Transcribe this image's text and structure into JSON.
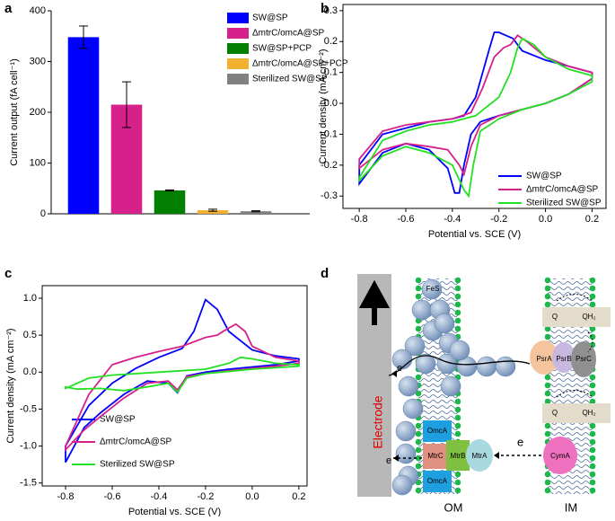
{
  "chart_data": [
    {
      "type": "bar",
      "panel": "a",
      "ylabel": "Current output (fA cell⁻¹)",
      "categories": [
        "SW@SP",
        "ΔmtrC/omcA@SP",
        "SW@SP+PCP",
        "ΔmtrC/omcA@SP+PCP",
        "Sterilized SW@SP"
      ],
      "values": [
        348,
        215,
        46,
        7,
        5
      ],
      "errors": [
        22,
        45,
        1,
        2,
        1
      ],
      "colors": [
        "#0000ff",
        "#d6218b",
        "#007f00",
        "#f0b030",
        "#808080"
      ],
      "ylim": [
        0,
        400
      ],
      "yticks": [
        0,
        100,
        200,
        300,
        400
      ],
      "legend": "upper right"
    },
    {
      "type": "line",
      "panel": "b",
      "xlabel": "Potential vs. SCE (V)",
      "ylabel": "Current density (mA cm⁻²)",
      "xlim": [
        -0.87,
        0.26
      ],
      "ylim": [
        -0.34,
        0.32
      ],
      "xticks": [
        -0.8,
        -0.6,
        -0.4,
        -0.2,
        {
          "value": 0,
          "label": "0.0"
        },
        0.2
      ],
      "yticks": [
        -0.3,
        -0.2,
        -0.1,
        {
          "value": 0,
          "label": "0.0"
        },
        0.1,
        0.2,
        0.3
      ],
      "legend": "lower right",
      "series": [
        {
          "name": "SW@SP",
          "color": "#0000ff",
          "x": [
            -0.8,
            -0.7,
            -0.6,
            -0.5,
            -0.4,
            -0.35,
            -0.3,
            -0.27,
            -0.24,
            -0.22,
            -0.2,
            -0.17,
            -0.14,
            -0.1,
            0,
            0.1,
            0.2,
            0.2,
            0.1,
            0,
            -0.1,
            -0.2,
            -0.28,
            -0.32,
            -0.35,
            -0.37,
            -0.39,
            -0.42,
            -0.5,
            -0.6,
            -0.7,
            -0.8
          ],
          "values": [
            -0.2,
            -0.1,
            -0.08,
            -0.06,
            -0.05,
            -0.04,
            0.02,
            0.1,
            0.18,
            0.23,
            0.23,
            0.22,
            0.21,
            0.17,
            0.14,
            0.12,
            0.1,
            0.08,
            0.03,
            0,
            -0.02,
            -0.04,
            -0.06,
            -0.1,
            -0.2,
            -0.29,
            -0.29,
            -0.21,
            -0.15,
            -0.13,
            -0.16,
            -0.26
          ]
        },
        {
          "name": "ΔmtrC/omcA@SP",
          "color": "#d6218b",
          "x": [
            -0.8,
            -0.7,
            -0.6,
            -0.5,
            -0.4,
            -0.32,
            -0.27,
            -0.22,
            -0.18,
            -0.15,
            -0.12,
            -0.08,
            0,
            0.1,
            0.2,
            0.2,
            0.1,
            0,
            -0.1,
            -0.2,
            -0.28,
            -0.32,
            -0.35,
            -0.37,
            -0.42,
            -0.5,
            -0.6,
            -0.7,
            -0.8
          ],
          "values": [
            -0.18,
            -0.09,
            -0.07,
            -0.06,
            -0.05,
            -0.03,
            0.05,
            0.15,
            0.18,
            0.19,
            0.22,
            0.2,
            0.15,
            0.12,
            0.1,
            0.08,
            0.03,
            0,
            -0.02,
            -0.04,
            -0.07,
            -0.14,
            -0.23,
            -0.2,
            -0.15,
            -0.14,
            -0.13,
            -0.15,
            -0.21
          ]
        },
        {
          "name": "Sterilized SW@SP",
          "color": "#22e022",
          "x": [
            -0.8,
            -0.7,
            -0.6,
            -0.5,
            -0.4,
            -0.3,
            -0.2,
            -0.15,
            -0.12,
            -0.1,
            -0.05,
            0,
            0.1,
            0.2,
            0.2,
            0.1,
            0,
            -0.1,
            -0.2,
            -0.28,
            -0.31,
            -0.33,
            -0.35,
            -0.4,
            -0.5,
            -0.6,
            -0.7,
            -0.8
          ],
          "values": [
            -0.24,
            -0.12,
            -0.09,
            -0.07,
            -0.06,
            -0.04,
            0.02,
            0.1,
            0.18,
            0.21,
            0.19,
            0.15,
            0.11,
            0.09,
            0.07,
            0.03,
            0,
            -0.02,
            -0.05,
            -0.09,
            -0.2,
            -0.3,
            -0.28,
            -0.2,
            -0.16,
            -0.14,
            -0.17,
            -0.25
          ]
        }
      ]
    },
    {
      "type": "line",
      "panel": "c",
      "xlabel": "Potential vs. SCE (V)",
      "ylabel": "Current density (mA cm⁻²)",
      "xlim": [
        -0.9,
        0.235
      ],
      "ylim": [
        -1.54,
        1.17
      ],
      "xticks": [
        -0.8,
        -0.6,
        -0.4,
        -0.2,
        {
          "value": 0,
          "label": "0.0"
        },
        0.2
      ],
      "yticks": [
        -1.5,
        {
          "value": -1,
          "label": "-1.0"
        },
        -0.5,
        {
          "value": 0,
          "label": "0.0"
        },
        0.5,
        {
          "value": 1,
          "label": "1.0"
        }
      ],
      "legend": "lower left",
      "series": [
        {
          "name": "SW@SP",
          "color": "#0000ff",
          "x": [
            -0.8,
            -0.7,
            -0.6,
            -0.5,
            -0.4,
            -0.3,
            -0.25,
            -0.2,
            -0.15,
            -0.1,
            0,
            0.1,
            0.2,
            0.2,
            0.1,
            0,
            -0.1,
            -0.2,
            -0.28,
            -0.32,
            -0.36,
            -0.45,
            -0.55,
            -0.65,
            -0.72,
            -0.8
          ],
          "values": [
            -1.0,
            -0.45,
            -0.15,
            0.05,
            0.2,
            0.32,
            0.55,
            0.98,
            0.85,
            0.55,
            0.3,
            0.22,
            0.18,
            0.15,
            0.1,
            0.07,
            0.04,
            0.0,
            -0.05,
            -0.28,
            -0.15,
            -0.12,
            -0.3,
            -0.55,
            -0.75,
            -1.22
          ]
        },
        {
          "name": "ΔmtrC/omcA@SP",
          "color": "#d6218b",
          "x": [
            -0.8,
            -0.7,
            -0.6,
            -0.5,
            -0.4,
            -0.3,
            -0.2,
            -0.15,
            -0.12,
            -0.07,
            -0.03,
            0,
            0.1,
            0.2,
            0.2,
            0.1,
            0,
            -0.1,
            -0.2,
            -0.28,
            -0.32,
            -0.36,
            -0.45,
            -0.55,
            -0.65,
            -0.72,
            -0.8
          ],
          "values": [
            -1.0,
            -0.3,
            0.1,
            0.2,
            0.28,
            0.35,
            0.47,
            0.5,
            0.56,
            0.65,
            0.55,
            0.35,
            0.2,
            0.15,
            0.12,
            0.08,
            0.05,
            0.02,
            -0.02,
            -0.06,
            -0.24,
            -0.12,
            -0.15,
            -0.35,
            -0.6,
            -0.78,
            -1.05
          ]
        },
        {
          "name": "Sterilized SW@SP",
          "color": "#22e022",
          "x": [
            -0.8,
            -0.7,
            -0.6,
            -0.4,
            -0.2,
            -0.1,
            -0.05,
            0,
            0.1,
            0.2,
            0.2,
            0,
            -0.2,
            -0.28,
            -0.32,
            -0.36,
            -0.45,
            -0.55,
            -0.65,
            -0.75,
            -0.8
          ],
          "values": [
            -0.22,
            -0.08,
            -0.04,
            0.0,
            0.04,
            0.12,
            0.2,
            0.18,
            0.12,
            0.1,
            0.08,
            0.04,
            -0.02,
            -0.08,
            -0.27,
            -0.15,
            -0.2,
            -0.25,
            -0.22,
            -0.23,
            -0.2
          ]
        }
      ]
    }
  ],
  "diagram": {
    "panel": "d",
    "fes": "FeS",
    "e1": "e",
    "e2": "e",
    "e3": "e",
    "psra": "PsrA",
    "psrb": "PsrB",
    "psrc": "PsrC",
    "q1": "Q",
    "qh1": "QH₂",
    "q2": "Q",
    "qh2": "QH₂",
    "omca1": "OmcA",
    "omca2": "OmcA",
    "mtrc": "MtrC",
    "mtrb": "MtrB",
    "mtra": "MtrA",
    "cyma": "CymA",
    "electrode": "Electrode",
    "om": "OM",
    "im": "IM"
  }
}
